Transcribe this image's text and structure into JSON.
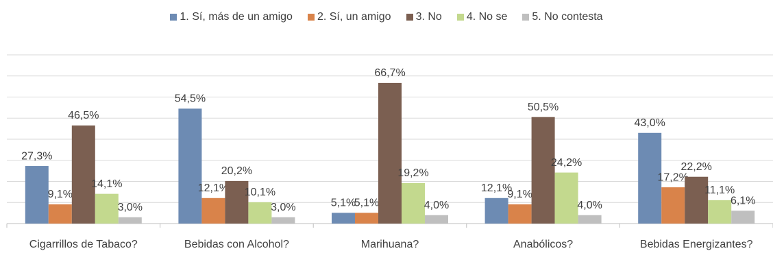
{
  "chart_data": {
    "type": "bar",
    "categories": [
      "Cigarrillos de Tabaco?",
      "Bebidas con Alcohol?",
      "Marihuana?",
      "Anabólicos?",
      "Bebidas Energizantes?"
    ],
    "series": [
      {
        "name": "1. Sí, más de un amigo",
        "color": "#6d8bb3",
        "values": [
          27.3,
          54.5,
          5.1,
          12.1,
          43.0
        ],
        "value_labels": [
          "27,3%",
          "54,5%",
          "5,1%",
          "12,1%",
          "43,0%"
        ]
      },
      {
        "name": "2. Sí, un amigo",
        "color": "#d9834a",
        "values": [
          9.1,
          12.1,
          5.1,
          9.1,
          17.2
        ],
        "value_labels": [
          "9,1%",
          "12,1%",
          "5,1%",
          "9,1%",
          "17,2%"
        ]
      },
      {
        "name": "3. No",
        "color": "#7b5f51",
        "values": [
          46.5,
          20.2,
          66.7,
          50.5,
          22.2
        ],
        "value_labels": [
          "46,5%",
          "20,2%",
          "66,7%",
          "50,5%",
          "22,2%"
        ]
      },
      {
        "name": "4. No se",
        "color": "#c3d98e",
        "values": [
          14.1,
          10.1,
          19.2,
          24.2,
          11.1
        ],
        "value_labels": [
          "14,1%",
          "10,1%",
          "19,2%",
          "24,2%",
          "11,1%"
        ]
      },
      {
        "name": "5. No contesta",
        "color": "#bfbfbf",
        "values": [
          3.0,
          3.0,
          4.0,
          4.0,
          6.1
        ],
        "value_labels": [
          "3,0%",
          "3,0%",
          "4,0%",
          "4,0%",
          "6,1%"
        ]
      }
    ],
    "ylim": [
      0,
      80
    ],
    "yticks": [
      0,
      10,
      20,
      30,
      40,
      50,
      60,
      70,
      80
    ],
    "grid": true,
    "legend": "top"
  }
}
